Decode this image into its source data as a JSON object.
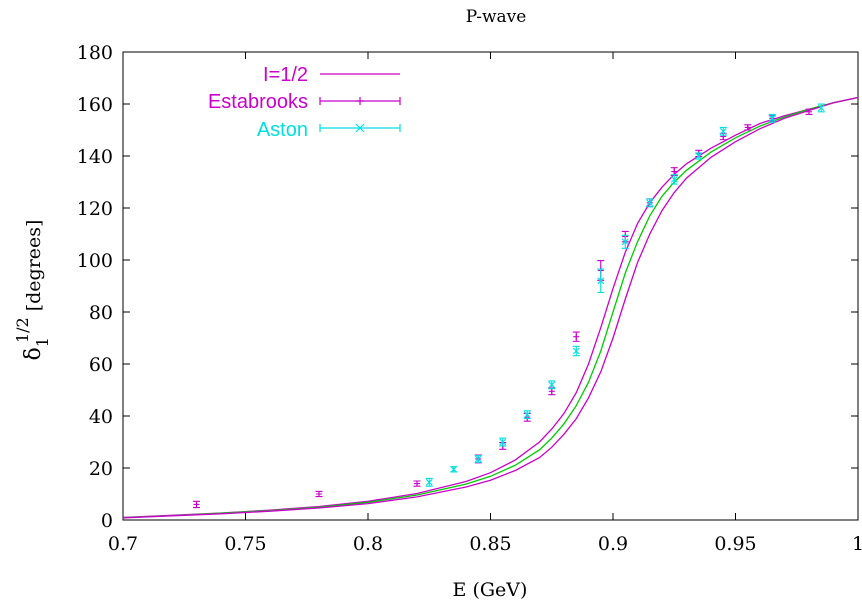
{
  "chart_data": {
    "type": "line",
    "title": "P-wave",
    "xlabel": "E (GeV)",
    "ylabel": {
      "base": "δ",
      "superscript": "1/2",
      "subscript": "1",
      "unit": "[degrees]"
    },
    "xlim": [
      0.7,
      1.0
    ],
    "ylim": [
      0,
      180
    ],
    "x_ticks": [
      "0.7",
      "0.75",
      "0.8",
      "0.85",
      "0.9",
      "0.95",
      "1"
    ],
    "y_ticks": [
      "0",
      "20",
      "40",
      "60",
      "80",
      "100",
      "120",
      "140",
      "160",
      "180"
    ],
    "grid": false,
    "legend_position": "top-left",
    "colors": {
      "band": "#cc00cc",
      "central": "#00cc00",
      "estabrooks": "#cc00cc",
      "aston": "#00e0e0"
    },
    "legend": [
      {
        "label": "I=1/2",
        "style": "line",
        "color": "#cc00cc"
      },
      {
        "label": "Estabrooks",
        "style": "errorbar-plus",
        "color": "#cc00cc"
      },
      {
        "label": "Aston",
        "style": "errorbar-cross",
        "color": "#00e0e0"
      }
    ],
    "series": [
      {
        "name": "I=1/2",
        "role": "band-upper",
        "x": [
          0.7,
          0.72,
          0.74,
          0.76,
          0.78,
          0.8,
          0.82,
          0.84,
          0.85,
          0.86,
          0.87,
          0.875,
          0.88,
          0.885,
          0.89,
          0.895,
          0.9,
          0.905,
          0.91,
          0.915,
          0.92,
          0.925,
          0.93,
          0.94,
          0.95,
          0.96,
          0.97,
          0.98,
          0.99,
          1.0
        ],
        "y": [
          1.0,
          1.8,
          2.7,
          3.8,
          5.2,
          7.2,
          10.2,
          14.8,
          18.2,
          23.0,
          30.0,
          35.0,
          41.0,
          49.0,
          60.0,
          74.0,
          89.0,
          103.0,
          114.0,
          122.0,
          128.0,
          133.0,
          137.0,
          143.0,
          148.0,
          152.5,
          155.5,
          158.0,
          160.5,
          162.5
        ]
      },
      {
        "name": "",
        "role": "central",
        "x": [
          0.7,
          0.72,
          0.74,
          0.76,
          0.78,
          0.8,
          0.82,
          0.84,
          0.85,
          0.86,
          0.87,
          0.875,
          0.88,
          0.885,
          0.89,
          0.895,
          0.9,
          0.905,
          0.91,
          0.915,
          0.92,
          0.925,
          0.93,
          0.94,
          0.95,
          0.96,
          0.97,
          0.98,
          0.99,
          1.0
        ],
        "y": [
          0.9,
          1.7,
          2.6,
          3.6,
          4.9,
          6.8,
          9.6,
          13.8,
          16.8,
          21.0,
          27.0,
          31.5,
          37.0,
          44.0,
          53.0,
          65.0,
          80.0,
          95.0,
          107.0,
          117.0,
          124.5,
          130.0,
          134.5,
          141.5,
          147.0,
          151.5,
          155.0,
          158.0,
          160.5,
          162.5
        ]
      },
      {
        "name": "",
        "role": "band-lower",
        "x": [
          0.7,
          0.72,
          0.74,
          0.76,
          0.78,
          0.8,
          0.82,
          0.84,
          0.85,
          0.86,
          0.87,
          0.875,
          0.88,
          0.885,
          0.89,
          0.895,
          0.9,
          0.905,
          0.91,
          0.915,
          0.92,
          0.925,
          0.93,
          0.94,
          0.95,
          0.96,
          0.97,
          0.98,
          0.99,
          1.0
        ],
        "y": [
          0.8,
          1.6,
          2.4,
          3.4,
          4.6,
          6.3,
          8.9,
          12.7,
          15.3,
          19.0,
          24.0,
          28.0,
          33.0,
          39.0,
          47.0,
          57.0,
          70.0,
          85.0,
          99.0,
          110.0,
          119.0,
          126.0,
          131.5,
          139.5,
          145.5,
          150.5,
          154.5,
          157.5,
          160.5,
          162.5
        ]
      },
      {
        "name": "Estabrooks",
        "role": "points-plus",
        "x": [
          0.73,
          0.78,
          0.82,
          0.845,
          0.855,
          0.865,
          0.875,
          0.885,
          0.895,
          0.905,
          0.915,
          0.925,
          0.935,
          0.945,
          0.955,
          0.965,
          0.98
        ],
        "y": [
          6.0,
          10.0,
          14.0,
          23.5,
          28.5,
          39.5,
          49.5,
          70.5,
          96.0,
          109.0,
          122.0,
          134.0,
          141.0,
          147.5,
          151.0,
          154.5,
          157.0
        ],
        "err": [
          1.2,
          1.0,
          1.0,
          1.5,
          1.3,
          1.5,
          1.3,
          1.8,
          3.8,
          2.0,
          1.5,
          1.5,
          1.2,
          1.2,
          1.0,
          1.0,
          1.0
        ]
      },
      {
        "name": "Aston",
        "role": "points-cross",
        "x": [
          0.825,
          0.835,
          0.845,
          0.855,
          0.865,
          0.875,
          0.885,
          0.895,
          0.905,
          0.915,
          0.925,
          0.935,
          0.945,
          0.965,
          0.985
        ],
        "y": [
          14.5,
          19.5,
          23.5,
          30.0,
          40.5,
          52.0,
          65.0,
          92.0,
          107.0,
          122.0,
          131.0,
          140.0,
          149.5,
          154.5,
          158.5
        ],
        "err": [
          1.5,
          1.0,
          1.3,
          1.5,
          1.5,
          1.5,
          1.8,
          4.5,
          2.5,
          1.5,
          1.8,
          1.2,
          1.5,
          1.5,
          1.5
        ]
      }
    ]
  }
}
